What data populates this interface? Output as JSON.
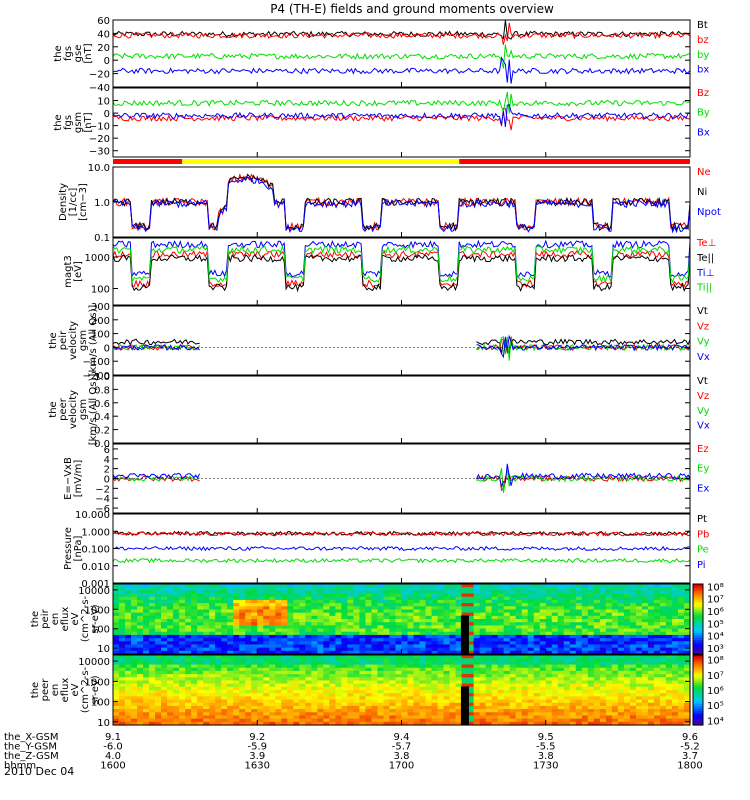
{
  "title": "P4 (TH-E) fields and ground moments overview",
  "date": "2010 Dec 04",
  "colors": {
    "black": "#000000",
    "red": "#ff0000",
    "green": "#00dd00",
    "blue": "#0000ff",
    "yellow": "#ffff00"
  },
  "orbit": {
    "labels": [
      "the_X-GSM",
      "the_Y-GSM",
      "the_Z-GSM",
      "hhmm"
    ],
    "columns": [
      [
        "9.1",
        "-6.0",
        "4.0",
        "1600"
      ],
      [
        "9.2",
        "-5.9",
        "3.9",
        "1630"
      ],
      [
        "9.4",
        "-5.7",
        "3.8",
        "1700"
      ],
      [
        "9.5",
        "-5.5",
        "3.8",
        "1730"
      ],
      [
        "9.6",
        "-5.2",
        "3.7",
        "1800"
      ]
    ]
  },
  "chart_data": [
    {
      "id": "fgs_gse",
      "type": "line",
      "ylabel": [
        "the",
        "fgs",
        "gse",
        "[nT]"
      ],
      "ylim": [
        -40,
        60
      ],
      "scale": "linear",
      "ticks": [
        "60",
        "40",
        "20",
        "0",
        "−20",
        "−40"
      ],
      "tick_values": [
        60,
        40,
        20,
        0,
        -20,
        -40
      ],
      "series": [
        {
          "name": "Bt",
          "color": "#000000",
          "level": 39
        },
        {
          "name": "bz",
          "color": "#ff0000",
          "level": 37
        },
        {
          "name": "by",
          "color": "#00dd00",
          "level": 6
        },
        {
          "name": "bx",
          "color": "#0000ff",
          "level": -16
        }
      ]
    },
    {
      "id": "fgs_gsm",
      "type": "line",
      "ylabel": [
        "the",
        "fgs",
        "gsm",
        "[nT]"
      ],
      "ylim": [
        -35,
        20
      ],
      "scale": "linear",
      "ticks": [
        "10",
        "0",
        "−10",
        "−20",
        "−30"
      ],
      "tick_values": [
        10,
        0,
        -10,
        -20,
        -30
      ],
      "series": [
        {
          "name": "Bz",
          "color": "#ff0000",
          "level": -4
        },
        {
          "name": "By",
          "color": "#00dd00",
          "level": 8
        },
        {
          "name": "Bx",
          "color": "#0000ff",
          "level": -2
        }
      ]
    },
    {
      "id": "density",
      "type": "line",
      "ylabel": [
        "Density",
        "[1/cc]",
        "[cm−3]"
      ],
      "ylim": [
        0.1,
        10
      ],
      "scale": "log",
      "ticks": [
        "10.0",
        "1.0",
        "0.1"
      ],
      "tick_values": [
        10,
        1,
        0.1
      ],
      "series": [
        {
          "name": "Ne",
          "color": "#ff0000",
          "level": 1
        },
        {
          "name": "Ni",
          "color": "#000000",
          "level": 1
        },
        {
          "name": "Npot",
          "color": "#0000ff",
          "level": 0.9
        }
      ]
    },
    {
      "id": "temperature",
      "type": "line",
      "ylabel": [
        "magt3",
        "[eV]"
      ],
      "ylim": [
        30,
        4000
      ],
      "scale": "log",
      "ticks": [
        "1000",
        "100"
      ],
      "tick_values": [
        1000,
        100
      ],
      "series": [
        {
          "name": "Te⊥",
          "color": "#ff0000",
          "level": 1200
        },
        {
          "name": "Te||",
          "color": "#000000",
          "level": 900
        },
        {
          "name": "Ti⊥",
          "color": "#0000ff",
          "level": 2500
        },
        {
          "name": "Ti||",
          "color": "#00dd00",
          "level": 1700
        }
      ]
    },
    {
      "id": "peir_vel",
      "type": "line",
      "ylabel": [
        "the",
        "peir",
        "velocity",
        "gsm",
        "[km/s (All Qs)]"
      ],
      "ylim": [
        -200,
        300
      ],
      "scale": "linear",
      "ticks": [
        "300",
        "200",
        "100",
        "0",
        "−100",
        "−200"
      ],
      "tick_values": [
        300,
        200,
        100,
        0,
        -100,
        -200
      ],
      "series": [
        {
          "name": "Vt",
          "color": "#000000",
          "level": 40
        },
        {
          "name": "Vz",
          "color": "#ff0000",
          "level": 0
        },
        {
          "name": "Vy",
          "color": "#00dd00",
          "level": 0
        },
        {
          "name": "Vx",
          "color": "#0000ff",
          "level": 0
        }
      ]
    },
    {
      "id": "peer_vel",
      "type": "line",
      "ylabel": [
        "the",
        "peer",
        "velocity",
        "gsm",
        "[km/s (All Qs)]"
      ],
      "ylim": [
        0,
        1
      ],
      "scale": "linear",
      "ticks": [
        "1.0",
        "0.8",
        "0.6",
        "0.4",
        "0.2",
        "0.0"
      ],
      "tick_values": [
        1,
        0.8,
        0.6,
        0.4,
        0.2,
        0
      ],
      "series": [
        {
          "name": "Vt",
          "color": "#000000"
        },
        {
          "name": "Vz",
          "color": "#ff0000"
        },
        {
          "name": "Vy",
          "color": "#00dd00"
        },
        {
          "name": "Vx",
          "color": "#0000ff"
        }
      ]
    },
    {
      "id": "efield",
      "type": "line",
      "ylabel": [
        "E=−VxB",
        "[mV/m]"
      ],
      "ylim": [
        -7,
        7
      ],
      "scale": "linear",
      "ticks": [
        "6",
        "4",
        "2",
        "0",
        "−2",
        "−4",
        "−6"
      ],
      "tick_values": [
        6,
        4,
        2,
        0,
        -2,
        -4,
        -6
      ],
      "series": [
        {
          "name": "Ez",
          "color": "#ff0000",
          "level": 0
        },
        {
          "name": "Ey",
          "color": "#00dd00",
          "level": 0
        },
        {
          "name": "Ex",
          "color": "#0000ff",
          "level": 0.5
        }
      ]
    },
    {
      "id": "pressure",
      "type": "line",
      "ylabel": [
        "Pressure",
        "[nPa]"
      ],
      "ylim": [
        0.001,
        10
      ],
      "scale": "log",
      "ticks": [
        "10.000",
        "1.000",
        "0.100",
        "0.010",
        "0.001"
      ],
      "tick_values": [
        10,
        1,
        0.1,
        0.01,
        0.001
      ],
      "series": [
        {
          "name": "Pt",
          "color": "#000000",
          "level": 0.75
        },
        {
          "name": "Pb",
          "color": "#ff0000",
          "level": 0.7
        },
        {
          "name": "Pe",
          "color": "#00dd00",
          "level": 0.02
        },
        {
          "name": "Pi",
          "color": "#0000ff",
          "level": 0.1
        }
      ]
    },
    {
      "id": "peir_spec",
      "type": "heatmap",
      "ylabel": [
        "the",
        "peir",
        "en",
        "eflux",
        "eV",
        "(cm^2-s-",
        "sr-eV)"
      ],
      "ylim": [
        5,
        20000
      ],
      "scale": "log",
      "ticks": [
        "10000",
        "1000",
        "100",
        "10"
      ],
      "tick_values": [
        10000,
        1000,
        100,
        10
      ],
      "colorbar": {
        "labels": [
          "10⁸",
          "10⁷",
          "10⁶",
          "10⁵",
          "10⁴",
          "10³"
        ],
        "values": [
          8,
          7,
          6,
          5,
          4,
          3
        ],
        "range": [
          2.5,
          8.2
        ]
      }
    },
    {
      "id": "peer_spec",
      "type": "heatmap",
      "ylabel": [
        "the",
        "peer",
        "en",
        "eflux",
        "eV",
        "(cm^2-s-",
        "sr-eV)"
      ],
      "ylim": [
        7,
        20000
      ],
      "scale": "log",
      "ticks": [
        "10000",
        "1000",
        "100",
        "10"
      ],
      "tick_values": [
        10000,
        1000,
        100,
        10
      ],
      "colorbar": {
        "labels": [
          "10⁸",
          "10⁷",
          "10⁶",
          "10⁵",
          "10⁴"
        ],
        "values": [
          8,
          7,
          6,
          5,
          4
        ],
        "range": [
          3.7,
          8.3
        ]
      }
    }
  ],
  "mode_bar": [
    {
      "start": 0.0,
      "end": 0.12,
      "color": "#ff0000"
    },
    {
      "start": 0.12,
      "end": 0.6,
      "color": "#ffff00"
    },
    {
      "start": 0.6,
      "end": 1.0,
      "color": "#ff0000"
    }
  ],
  "time_axis": {
    "start": 1600,
    "end": 1800,
    "ticks": [
      0,
      0.25,
      0.5,
      0.75,
      1.0
    ],
    "ion_gap": [
      0.15,
      0.63
    ]
  }
}
